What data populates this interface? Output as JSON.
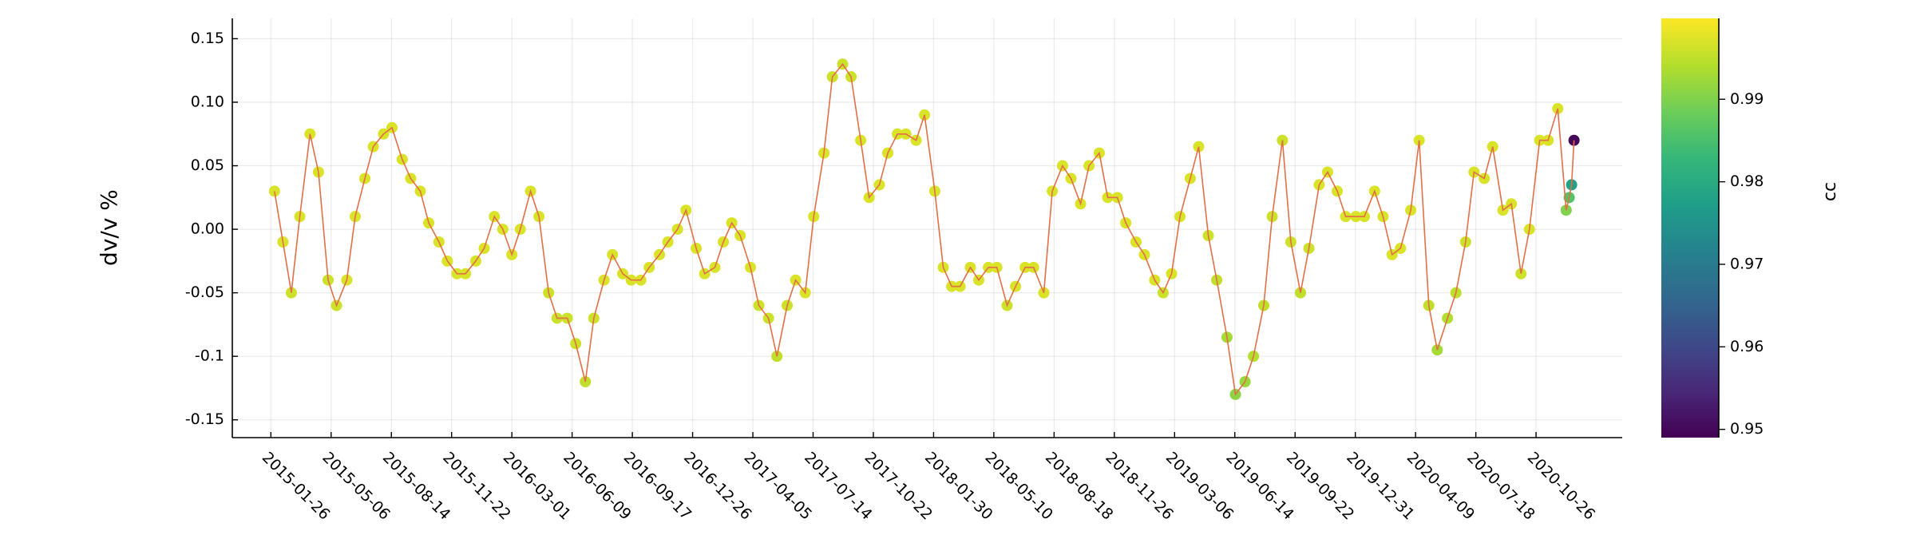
{
  "chart_data": {
    "type": "line-scatter",
    "ylabel": "dv/v %",
    "colorbar_label": "cc",
    "colormap": "viridis",
    "line_color": "#e26f46",
    "grid": true,
    "xlim": [
      "2014-11-23",
      "2021-03-18"
    ],
    "ylim": [
      -0.164,
      0.166
    ],
    "clim": [
      0.949,
      0.9998
    ],
    "xticks": [
      "2015-01-26",
      "2015-05-06",
      "2015-08-14",
      "2015-11-22",
      "2016-03-01",
      "2016-06-09",
      "2016-09-17",
      "2016-12-26",
      "2017-04-05",
      "2017-07-14",
      "2017-10-22",
      "2018-01-30",
      "2018-05-10",
      "2018-08-18",
      "2018-11-26",
      "2019-03-06",
      "2019-06-14",
      "2019-09-22",
      "2019-12-31",
      "2020-04-09",
      "2020-07-18",
      "2020-10-26"
    ],
    "yticks": [
      -0.15,
      -0.1,
      -0.05,
      {
        "value": 0,
        "label": "0.00"
      },
      0.05,
      {
        "value": 0.1,
        "label": "0.10"
      },
      0.15
    ],
    "cticks": [
      0.95,
      0.96,
      0.97,
      0.98,
      0.99
    ],
    "x": [
      "2015-02-01",
      "2015-02-15",
      "2015-03-01",
      "2015-03-15",
      "2015-04-01",
      "2015-04-15",
      "2015-05-01",
      "2015-05-15",
      "2015-06-01",
      "2015-06-15",
      "2015-07-01",
      "2015-07-15",
      "2015-08-01",
      "2015-08-15",
      "2015-09-01",
      "2015-09-15",
      "2015-10-01",
      "2015-10-15",
      "2015-11-01",
      "2015-11-15",
      "2015-12-01",
      "2015-12-15",
      "2016-01-01",
      "2016-01-15",
      "2016-02-01",
      "2016-02-15",
      "2016-03-01",
      "2016-03-15",
      "2016-04-01",
      "2016-04-15",
      "2016-05-01",
      "2016-05-15",
      "2016-06-01",
      "2016-06-15",
      "2016-07-01",
      "2016-07-15",
      "2016-08-01",
      "2016-08-15",
      "2016-09-01",
      "2016-09-15",
      "2016-10-01",
      "2016-10-15",
      "2016-11-01",
      "2016-11-15",
      "2016-12-01",
      "2016-12-15",
      "2017-01-01",
      "2017-01-15",
      "2017-02-01",
      "2017-02-15",
      "2017-03-01",
      "2017-03-15",
      "2017-04-01",
      "2017-04-15",
      "2017-05-01",
      "2017-05-15",
      "2017-06-01",
      "2017-06-15",
      "2017-07-01",
      "2017-07-15",
      "2017-08-01",
      "2017-08-15",
      "2017-09-01",
      "2017-09-15",
      "2017-10-01",
      "2017-10-15",
      "2017-11-01",
      "2017-11-15",
      "2017-12-01",
      "2017-12-15",
      "2018-01-01",
      "2018-01-15",
      "2018-02-01",
      "2018-02-15",
      "2018-03-01",
      "2018-03-15",
      "2018-04-01",
      "2018-04-15",
      "2018-05-01",
      "2018-05-15",
      "2018-06-01",
      "2018-06-15",
      "2018-07-01",
      "2018-07-15",
      "2018-08-01",
      "2018-08-15",
      "2018-09-01",
      "2018-09-15",
      "2018-10-01",
      "2018-10-15",
      "2018-11-01",
      "2018-11-15",
      "2018-12-01",
      "2018-12-15",
      "2019-01-01",
      "2019-01-15",
      "2019-02-01",
      "2019-02-15",
      "2019-03-01",
      "2019-03-15",
      "2019-04-01",
      "2019-04-15",
      "2019-05-01",
      "2019-05-15",
      "2019-06-01",
      "2019-06-15",
      "2019-07-01",
      "2019-07-15",
      "2019-08-01",
      "2019-08-15",
      "2019-09-01",
      "2019-09-15",
      "2019-10-01",
      "2019-10-15",
      "2019-11-01",
      "2019-11-15",
      "2019-12-01",
      "2019-12-15",
      "2020-01-01",
      "2020-01-15",
      "2020-02-01",
      "2020-02-15",
      "2020-03-01",
      "2020-03-15",
      "2020-04-01",
      "2020-04-15",
      "2020-05-01",
      "2020-05-15",
      "2020-06-01",
      "2020-06-15",
      "2020-07-01",
      "2020-07-15",
      "2020-08-01",
      "2020-08-15",
      "2020-09-01",
      "2020-09-15",
      "2020-10-01",
      "2020-10-15",
      "2020-11-01",
      "2020-11-15",
      "2020-12-01",
      "2020-12-15",
      "2020-12-20",
      "2020-12-24",
      "2020-12-28"
    ],
    "values": [
      0.03,
      -0.01,
      -0.05,
      0.01,
      0.075,
      0.045,
      -0.04,
      -0.06,
      -0.04,
      0.01,
      0.04,
      0.065,
      0.075,
      0.08,
      0.055,
      0.04,
      0.03,
      0.005,
      -0.01,
      -0.025,
      -0.035,
      -0.035,
      -0.025,
      -0.015,
      0.01,
      0.0,
      -0.02,
      0.0,
      0.03,
      0.01,
      -0.05,
      -0.07,
      -0.07,
      -0.09,
      -0.12,
      -0.07,
      -0.04,
      -0.02,
      -0.035,
      -0.04,
      -0.04,
      -0.03,
      -0.02,
      -0.01,
      0.0,
      0.015,
      -0.015,
      -0.035,
      -0.03,
      -0.01,
      0.005,
      -0.005,
      -0.03,
      -0.06,
      -0.07,
      -0.1,
      -0.06,
      -0.04,
      -0.05,
      0.01,
      0.06,
      0.12,
      0.13,
      0.12,
      0.07,
      0.025,
      0.035,
      0.06,
      0.075,
      0.075,
      0.07,
      0.09,
      0.03,
      -0.03,
      -0.045,
      -0.045,
      -0.03,
      -0.04,
      -0.03,
      -0.03,
      -0.06,
      -0.045,
      -0.03,
      -0.03,
      -0.05,
      0.03,
      0.05,
      0.04,
      0.02,
      0.05,
      0.06,
      0.025,
      0.025,
      0.005,
      -0.01,
      -0.02,
      -0.04,
      -0.05,
      -0.035,
      0.01,
      0.04,
      0.065,
      -0.005,
      -0.04,
      -0.085,
      -0.13,
      -0.12,
      -0.1,
      -0.06,
      0.01,
      0.07,
      -0.01,
      -0.05,
      -0.015,
      0.035,
      0.045,
      0.03,
      0.01,
      0.01,
      0.01,
      0.03,
      0.01,
      -0.02,
      -0.015,
      0.015,
      0.07,
      -0.06,
      -0.095,
      -0.07,
      -0.05,
      -0.01,
      0.045,
      0.04,
      0.065,
      0.015,
      0.02,
      -0.035,
      0.0,
      0.07,
      0.07,
      0.095,
      0.015,
      0.025,
      0.035,
      0.07
    ],
    "cc": [
      0.997,
      0.997,
      0.996,
      0.997,
      0.997,
      0.997,
      0.996,
      0.996,
      0.997,
      0.997,
      0.997,
      0.997,
      0.997,
      0.997,
      0.997,
      0.997,
      0.997,
      0.997,
      0.997,
      0.997,
      0.997,
      0.997,
      0.997,
      0.997,
      0.997,
      0.997,
      0.997,
      0.997,
      0.997,
      0.997,
      0.996,
      0.996,
      0.996,
      0.996,
      0.995,
      0.996,
      0.997,
      0.997,
      0.997,
      0.997,
      0.997,
      0.997,
      0.997,
      0.997,
      0.997,
      0.997,
      0.997,
      0.997,
      0.997,
      0.997,
      0.997,
      0.997,
      0.997,
      0.996,
      0.996,
      0.995,
      0.996,
      0.997,
      0.997,
      0.997,
      0.997,
      0.996,
      0.996,
      0.996,
      0.997,
      0.997,
      0.997,
      0.997,
      0.997,
      0.997,
      0.997,
      0.997,
      0.997,
      0.997,
      0.997,
      0.997,
      0.997,
      0.997,
      0.997,
      0.997,
      0.996,
      0.997,
      0.997,
      0.997,
      0.997,
      0.997,
      0.997,
      0.997,
      0.997,
      0.997,
      0.997,
      0.997,
      0.997,
      0.997,
      0.997,
      0.997,
      0.997,
      0.996,
      0.997,
      0.997,
      0.997,
      0.997,
      0.996,
      0.995,
      0.993,
      0.991,
      0.992,
      0.994,
      0.995,
      0.996,
      0.996,
      0.996,
      0.995,
      0.996,
      0.997,
      0.997,
      0.997,
      0.997,
      0.997,
      0.997,
      0.997,
      0.997,
      0.997,
      0.997,
      0.997,
      0.997,
      0.995,
      0.993,
      0.994,
      0.995,
      0.996,
      0.997,
      0.997,
      0.997,
      0.997,
      0.997,
      0.996,
      0.997,
      0.997,
      0.997,
      0.997,
      0.99,
      0.986,
      0.978,
      0.95
    ]
  }
}
